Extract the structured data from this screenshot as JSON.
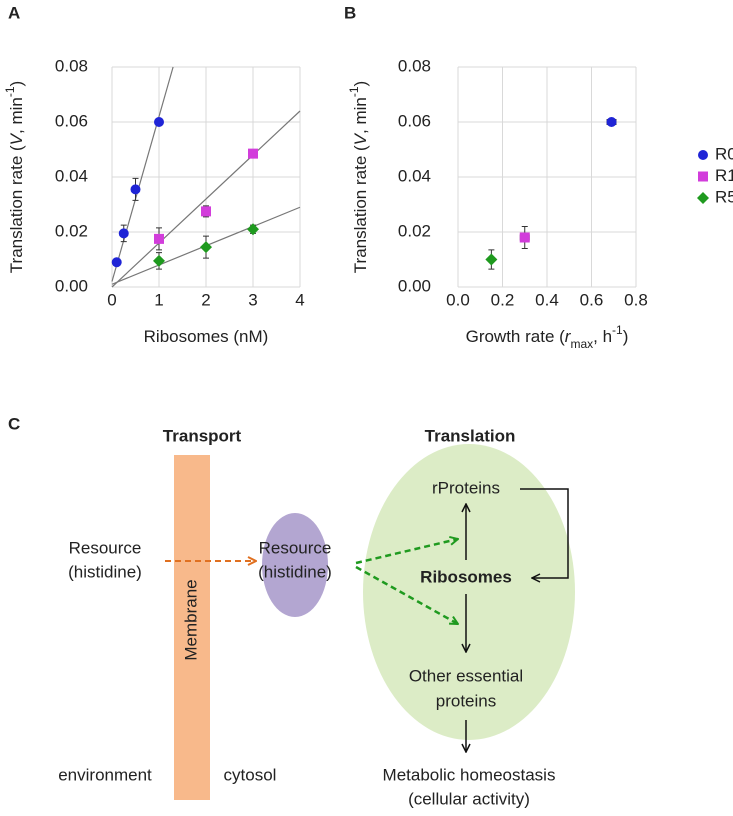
{
  "chart_data": [
    {
      "type": "scatter",
      "panel_label": "A",
      "xlabel": [
        "Ribosomes (nM)"
      ],
      "ylabel": [
        "Translation rate (",
        "V",
        ", min",
        "-1",
        ")"
      ],
      "xlim": [
        0,
        4
      ],
      "xticks": [
        0,
        1,
        2,
        3,
        4
      ],
      "ylim": [
        0,
        0.08
      ],
      "yticks": [
        {
          "value": 0,
          "label": "0.00"
        },
        0.02,
        0.04,
        0.06,
        0.08
      ],
      "grid": true,
      "legend": false,
      "series": [
        {
          "color": "#1f24d6",
          "marker": "circle",
          "x": [
            0.1,
            0.25,
            0.5,
            1
          ],
          "values": [
            0.009,
            0.0195,
            0.0355,
            0.06
          ],
          "errors": [
            0.001,
            0.003,
            0.004,
            0.001
          ],
          "fit_slope": 0.06,
          "fit_intercept": 0.002
        },
        {
          "color": "#d23ddb",
          "marker": "square",
          "x": [
            1,
            2,
            3
          ],
          "values": [
            0.0175,
            0.0275,
            0.0485
          ],
          "errors": [
            0.004,
            0.002,
            0.001
          ],
          "fit_slope": 0.016,
          "fit_intercept": 0.0
        },
        {
          "color": "#1f9a1f",
          "marker": "diamond",
          "x": [
            1,
            2,
            3
          ],
          "values": [
            0.0095,
            0.0145,
            0.021
          ],
          "errors": [
            0.003,
            0.004,
            0.0015
          ],
          "fit_slope": 0.007,
          "fit_intercept": 0.001
        }
      ]
    },
    {
      "type": "scatter",
      "panel_label": "B",
      "xlabel": [
        "Growth rate (",
        "r",
        "max",
        ", h",
        "-1",
        ")"
      ],
      "ylabel": [
        "Translation rate (",
        "V",
        ", min",
        "-1",
        ")"
      ],
      "xlim": [
        0,
        0.8
      ],
      "xticks": [
        {
          "value": 0,
          "label": "0.0"
        },
        0.2,
        0.4,
        0.6,
        0.8
      ],
      "ylim": [
        0,
        0.08
      ],
      "yticks": [
        {
          "value": 0,
          "label": "0.00"
        },
        0.02,
        0.04,
        0.06,
        0.08
      ],
      "grid": true,
      "legend": "right",
      "series": [
        {
          "name": "R0",
          "color": "#1f24d6",
          "marker": "circle",
          "x": [
            0.69
          ],
          "values": [
            0.06
          ],
          "errors": [
            0.001
          ],
          "x_errors": [
            0.02
          ]
        },
        {
          "name": "R1",
          "color": "#d23ddb",
          "marker": "square",
          "x": [
            0.3
          ],
          "values": [
            0.018
          ],
          "errors": [
            0.004
          ],
          "x_errors": [
            0.02
          ]
        },
        {
          "name": "R5",
          "color": "#1f9a1f",
          "marker": "diamond",
          "x": [
            0.15
          ],
          "values": [
            0.01
          ],
          "errors": [
            0.0035
          ],
          "x_errors": [
            0.005
          ]
        }
      ]
    }
  ],
  "diagram": {
    "panel_label": "C",
    "headings": [
      "Transport",
      "Translation"
    ],
    "outside_resource": [
      "Resource",
      "(histidine)"
    ],
    "membrane": "Membrane",
    "inside_resource": [
      "Resource",
      "(histidine)"
    ],
    "rproteins": "rProteins",
    "ribosomes": "Ribosomes",
    "other_proteins": [
      "Other essential",
      "proteins"
    ],
    "output": [
      "Metabolic homeostasis",
      "(cellular activity)"
    ],
    "environment": "environment",
    "cytosol": "cytosol"
  }
}
